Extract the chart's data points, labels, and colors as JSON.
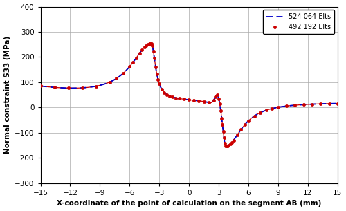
{
  "xlabel": "X-coordinate of the point of calculation on the segment AB (mm)",
  "ylabel": "Normal constraint S33 (MPa)",
  "xlim": [
    -15,
    15
  ],
  "ylim": [
    -300,
    400
  ],
  "yticks": [
    -300,
    -200,
    -100,
    0,
    100,
    200,
    300,
    400
  ],
  "xticks": [
    -15,
    -12,
    -9,
    -6,
    -3,
    0,
    3,
    6,
    9,
    12,
    15
  ],
  "legend1_label": "524 064 Elts",
  "legend2_label": "492 192 Elts",
  "line1_color": "#0000cc",
  "line2_color": "#cc0000",
  "background_color": "#ffffff",
  "grid_color": "#aaaaaa"
}
